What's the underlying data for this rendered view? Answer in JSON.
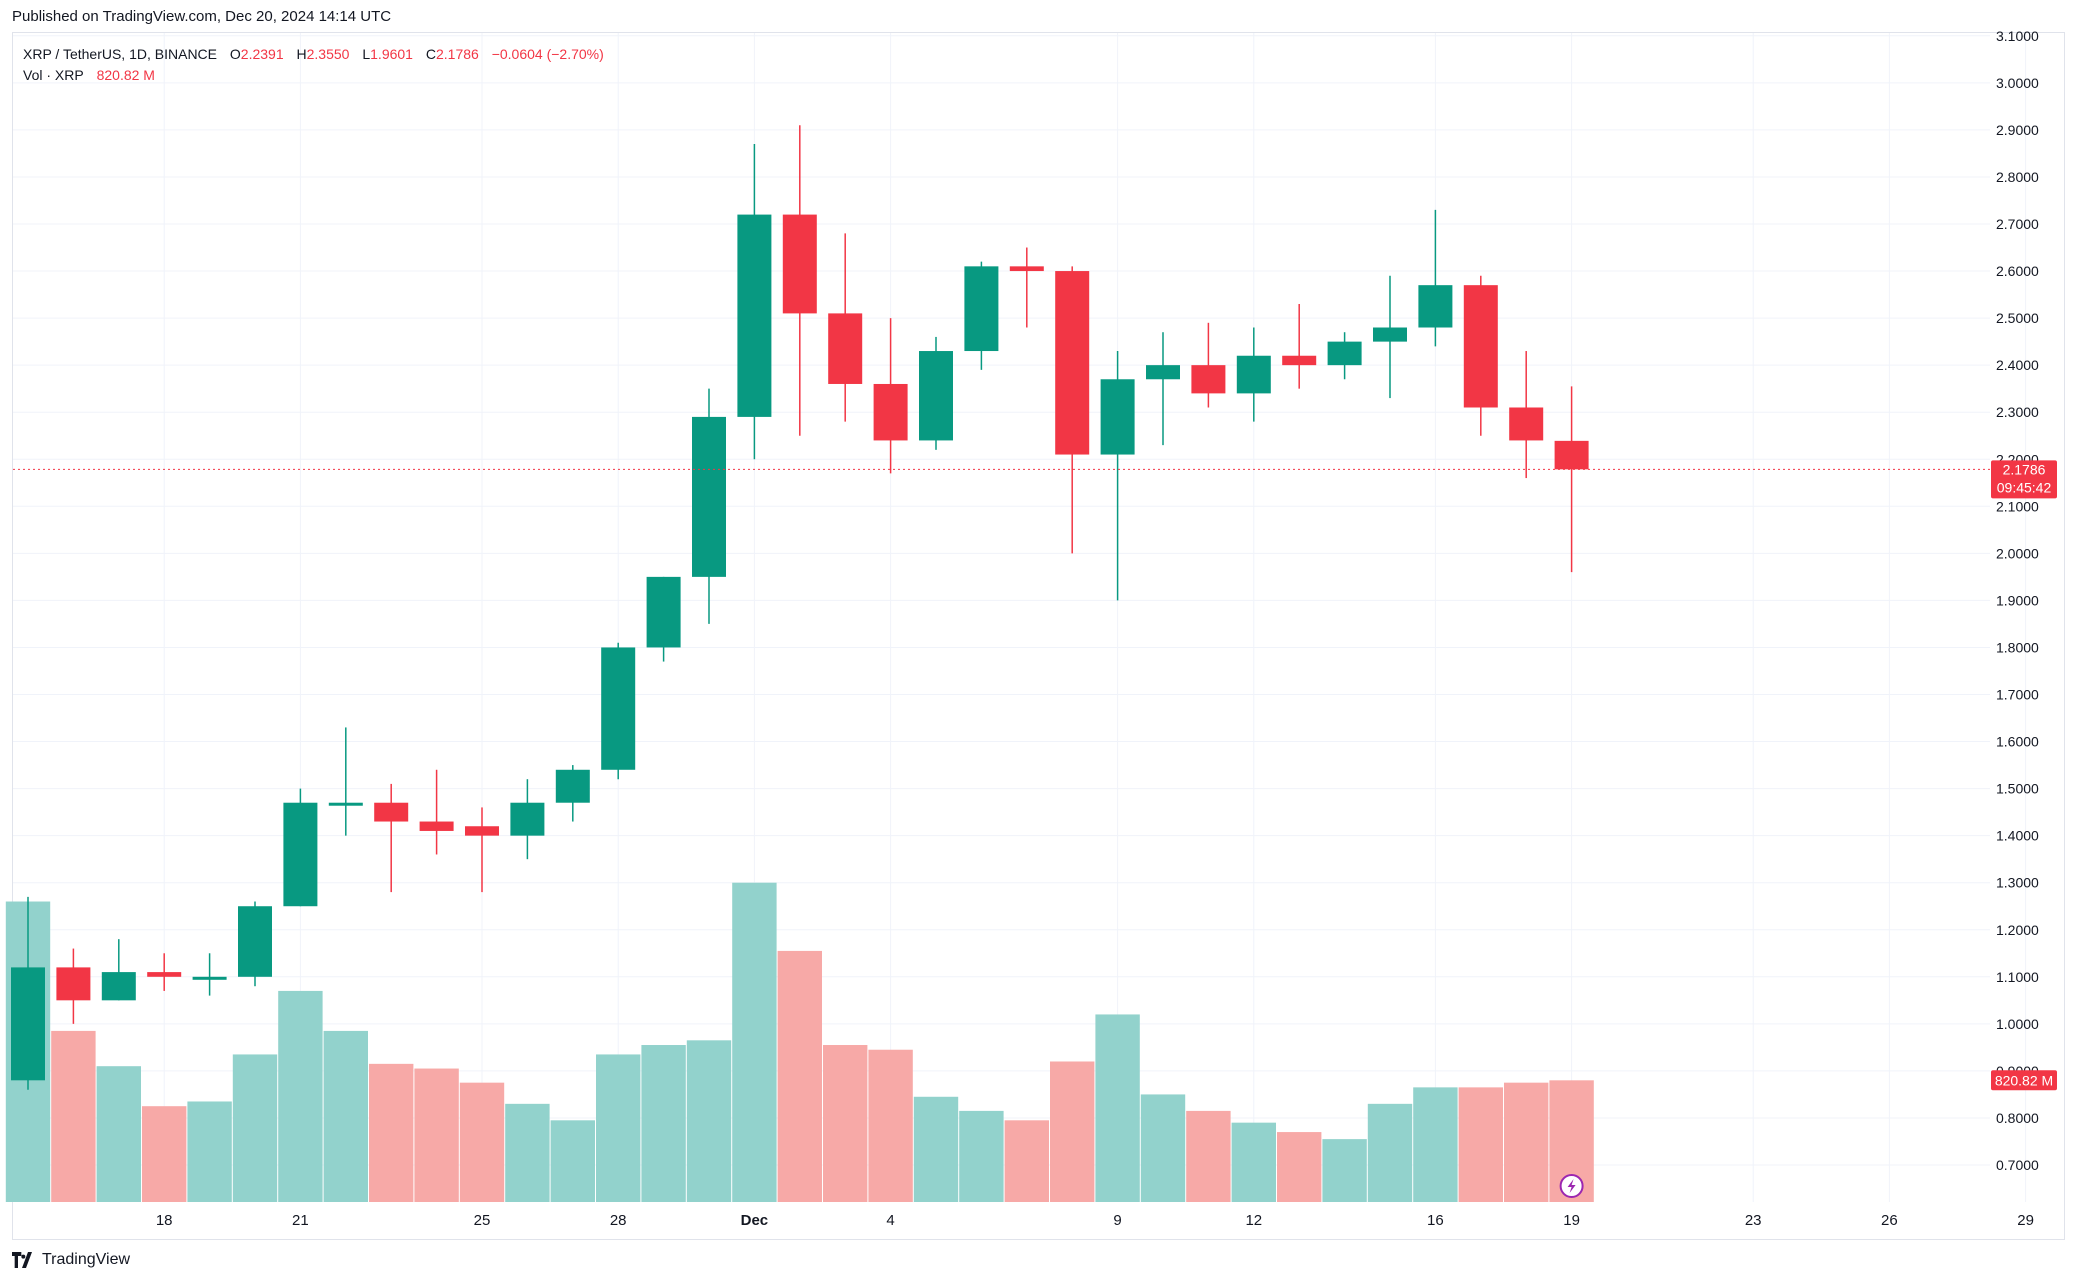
{
  "header": {
    "published_text": "Published on TradingView.com, Dec 20, 2024 14:14 UTC"
  },
  "legend": {
    "symbol": "XRP / TetherUS, 1D, BINANCE",
    "o_label": "O",
    "o_value": "2.2391",
    "h_label": "H",
    "h_value": "2.3550",
    "l_label": "L",
    "l_value": "1.9601",
    "c_label": "C",
    "c_value": "2.1786",
    "change": "−0.0604 (−2.70%)",
    "vol_label": "Vol · XRP",
    "vol_value": "820.82 M"
  },
  "price_tag": {
    "price": "2.1786",
    "countdown": "09:45:42"
  },
  "volume_tag": "820.82 M",
  "footer": {
    "brand": "TradingView"
  },
  "colors": {
    "up": "#089981",
    "down": "#f23645",
    "vol_up": "#92d2cc",
    "vol_down": "#f7a9a7",
    "grid": "#f0f3fa",
    "text": "#131722"
  },
  "chart_data": {
    "type": "candlestick",
    "title": "XRP / TetherUS, 1D, BINANCE",
    "y_ticks": [
      "0.7000",
      "0.8000",
      "0.9000",
      "1.0000",
      "1.1000",
      "1.2000",
      "1.3000",
      "1.4000",
      "1.5000",
      "1.6000",
      "1.7000",
      "1.8000",
      "1.9000",
      "2.0000",
      "2.1000",
      "2.2000",
      "2.3000",
      "2.4000",
      "2.5000",
      "2.6000",
      "2.7000",
      "2.8000",
      "2.9000",
      "3.0000",
      "3.1000"
    ],
    "ylim": [
      0.685,
      3.12
    ],
    "x_ticks": [
      {
        "day": 3,
        "label": "18"
      },
      {
        "day": 6,
        "label": "21"
      },
      {
        "day": 10,
        "label": "25"
      },
      {
        "day": 13,
        "label": "28"
      },
      {
        "day": 16,
        "label": "Dec"
      },
      {
        "day": 19,
        "label": "4"
      },
      {
        "day": 24,
        "label": "9"
      },
      {
        "day": 27,
        "label": "12"
      },
      {
        "day": 31,
        "label": "16"
      },
      {
        "day": 34,
        "label": "19"
      },
      {
        "day": 38,
        "label": "23"
      },
      {
        "day": 41,
        "label": "26"
      },
      {
        "day": 44,
        "label": "29"
      }
    ],
    "x_range_days": [
      0,
      45
    ],
    "candles": [
      {
        "date": "Nov 15",
        "o": 0.88,
        "h": 1.27,
        "l": 0.86,
        "c": 1.12
      },
      {
        "date": "Nov 16",
        "o": 1.12,
        "h": 1.16,
        "l": 1.0,
        "c": 1.05
      },
      {
        "date": "Nov 17",
        "o": 1.05,
        "h": 1.18,
        "l": 1.05,
        "c": 1.11
      },
      {
        "date": "Nov 18",
        "o": 1.11,
        "h": 1.15,
        "l": 1.07,
        "c": 1.1
      },
      {
        "date": "Nov 19",
        "o": 1.1,
        "h": 1.15,
        "l": 1.06,
        "c": 1.1
      },
      {
        "date": "Nov 20",
        "o": 1.1,
        "h": 1.26,
        "l": 1.08,
        "c": 1.25
      },
      {
        "date": "Nov 21",
        "o": 1.25,
        "h": 1.5,
        "l": 1.25,
        "c": 1.47
      },
      {
        "date": "Nov 22",
        "o": 1.47,
        "h": 1.63,
        "l": 1.4,
        "c": 1.47
      },
      {
        "date": "Nov 23",
        "o": 1.47,
        "h": 1.51,
        "l": 1.28,
        "c": 1.43
      },
      {
        "date": "Nov 24",
        "o": 1.43,
        "h": 1.54,
        "l": 1.36,
        "c": 1.41
      },
      {
        "date": "Nov 25",
        "o": 1.42,
        "h": 1.46,
        "l": 1.28,
        "c": 1.4
      },
      {
        "date": "Nov 26",
        "o": 1.4,
        "h": 1.52,
        "l": 1.35,
        "c": 1.47
      },
      {
        "date": "Nov 27",
        "o": 1.47,
        "h": 1.55,
        "l": 1.43,
        "c": 1.54
      },
      {
        "date": "Nov 28",
        "o": 1.54,
        "h": 1.81,
        "l": 1.52,
        "c": 1.8
      },
      {
        "date": "Nov 29",
        "o": 1.8,
        "h": 1.95,
        "l": 1.77,
        "c": 1.95
      },
      {
        "date": "Nov 30",
        "o": 1.95,
        "h": 2.35,
        "l": 1.85,
        "c": 2.29
      },
      {
        "date": "Dec 1",
        "o": 2.29,
        "h": 2.87,
        "l": 2.2,
        "c": 2.72
      },
      {
        "date": "Dec 2",
        "o": 2.72,
        "h": 2.91,
        "l": 2.25,
        "c": 2.51
      },
      {
        "date": "Dec 3",
        "o": 2.51,
        "h": 2.68,
        "l": 2.28,
        "c": 2.36
      },
      {
        "date": "Dec 4",
        "o": 2.36,
        "h": 2.5,
        "l": 2.17,
        "c": 2.24
      },
      {
        "date": "Dec 5",
        "o": 2.24,
        "h": 2.46,
        "l": 2.22,
        "c": 2.43
      },
      {
        "date": "Dec 6",
        "o": 2.43,
        "h": 2.62,
        "l": 2.39,
        "c": 2.61
      },
      {
        "date": "Dec 7",
        "o": 2.61,
        "h": 2.65,
        "l": 2.48,
        "c": 2.6
      },
      {
        "date": "Dec 8",
        "o": 2.6,
        "h": 2.61,
        "l": 2.0,
        "c": 2.21
      },
      {
        "date": "Dec 9",
        "o": 2.21,
        "h": 2.43,
        "l": 1.9,
        "c": 2.37
      },
      {
        "date": "Dec 10",
        "o": 2.37,
        "h": 2.47,
        "l": 2.23,
        "c": 2.4
      },
      {
        "date": "Dec 11",
        "o": 2.4,
        "h": 2.49,
        "l": 2.31,
        "c": 2.34
      },
      {
        "date": "Dec 12",
        "o": 2.34,
        "h": 2.48,
        "l": 2.28,
        "c": 2.42
      },
      {
        "date": "Dec 13",
        "o": 2.42,
        "h": 2.53,
        "l": 2.35,
        "c": 2.4
      },
      {
        "date": "Dec 14",
        "o": 2.4,
        "h": 2.47,
        "l": 2.37,
        "c": 2.45
      },
      {
        "date": "Dec 15",
        "o": 2.45,
        "h": 2.59,
        "l": 2.33,
        "c": 2.48
      },
      {
        "date": "Dec 16",
        "o": 2.48,
        "h": 2.73,
        "l": 2.44,
        "c": 2.57
      },
      {
        "date": "Dec 17",
        "o": 2.57,
        "h": 2.59,
        "l": 2.25,
        "c": 2.31
      },
      {
        "date": "Dec 18",
        "o": 2.31,
        "h": 2.43,
        "l": 2.16,
        "c": 2.24
      },
      {
        "date": "Dec 19",
        "o": 2.2391,
        "h": 2.355,
        "l": 1.9601,
        "c": 2.1786
      }
    ],
    "volume_unit": "price-axis scale (bars drawn up to this level)",
    "volume_levels": [
      1.26,
      0.985,
      0.91,
      0.825,
      0.835,
      0.935,
      1.07,
      0.985,
      0.915,
      0.905,
      0.875,
      0.83,
      0.795,
      0.935,
      0.955,
      0.965,
      1.3,
      1.155,
      0.955,
      0.945,
      0.845,
      0.815,
      0.795,
      0.92,
      1.02,
      0.85,
      0.815,
      0.79,
      0.77,
      0.755,
      0.83,
      0.865,
      0.865,
      0.875,
      0.88
    ],
    "last_price": 2.1786
  }
}
